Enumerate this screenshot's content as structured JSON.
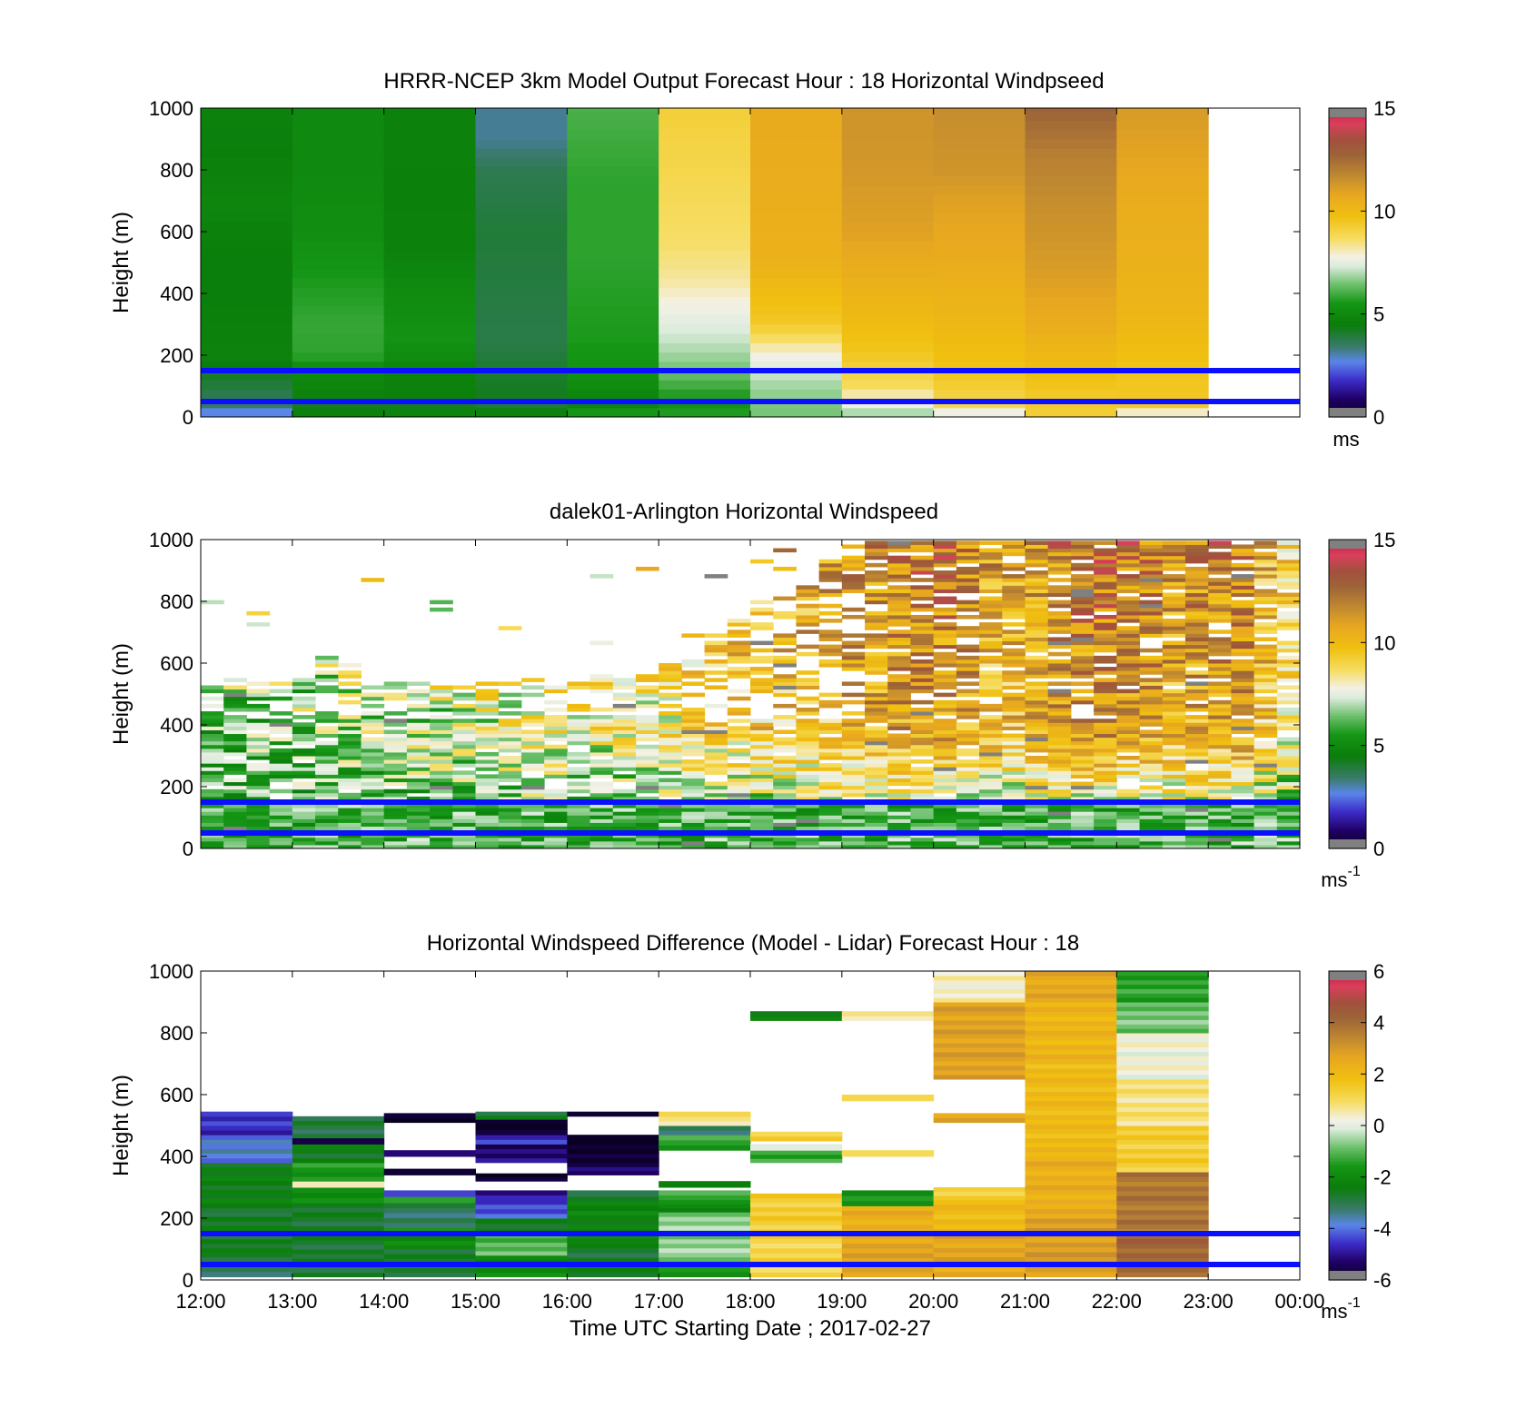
{
  "chart_data": [
    {
      "type": "heatmap",
      "title": "HRRR-NCEP 3km Model Output   Forecast Hour : 18 Horizontal Windpseed",
      "ylabel": "Height (m)",
      "ylim": [
        0,
        1000
      ],
      "yticks": [
        "0",
        "200",
        "400",
        "600",
        "800",
        "1000"
      ],
      "xlim_hours": [
        12,
        24
      ],
      "colorbar": {
        "min": 0,
        "max": 15,
        "ticks": [
          "0",
          "5",
          "10",
          "15"
        ],
        "unit": "ms",
        "unit_exp": ""
      },
      "reference_lines_m": [
        50,
        150
      ],
      "hours": [
        12,
        13,
        14,
        15,
        16,
        17,
        18,
        19,
        20,
        21,
        22
      ],
      "column_profiles_ms": [
        [
          [
            0,
            1.5
          ],
          [
            25,
            3.5
          ],
          [
            55,
            3.6
          ],
          [
            150,
            4.3
          ],
          [
            200,
            4.8
          ],
          [
            350,
            4.6
          ],
          [
            550,
            4.6
          ],
          [
            700,
            4.9
          ],
          [
            850,
            4.6
          ],
          [
            1000,
            4.7
          ]
        ],
        [
          [
            0,
            6.6
          ],
          [
            25,
            3.4
          ],
          [
            55,
            4.7
          ],
          [
            150,
            5.0
          ],
          [
            200,
            5.8
          ],
          [
            300,
            5.9
          ],
          [
            450,
            5.6
          ],
          [
            600,
            5.2
          ],
          [
            800,
            5.0
          ],
          [
            1000,
            5.0
          ]
        ],
        [
          [
            0,
            6.6
          ],
          [
            25,
            3.6
          ],
          [
            55,
            4.6
          ],
          [
            150,
            4.8
          ],
          [
            250,
            5.4
          ],
          [
            400,
            5.1
          ],
          [
            550,
            4.7
          ],
          [
            750,
            4.6
          ],
          [
            900,
            4.7
          ],
          [
            1000,
            4.7
          ]
        ],
        [
          [
            0,
            6.6
          ],
          [
            25,
            3.4
          ],
          [
            55,
            4.3
          ],
          [
            150,
            4.1
          ],
          [
            250,
            3.8
          ],
          [
            600,
            4.0
          ],
          [
            800,
            3.7
          ],
          [
            900,
            3.2
          ],
          [
            1000,
            3.2
          ]
        ],
        [
          [
            0,
            6.6
          ],
          [
            25,
            4.8
          ],
          [
            55,
            4.8
          ],
          [
            150,
            5.4
          ],
          [
            250,
            5.6
          ],
          [
            500,
            5.8
          ],
          [
            750,
            5.8
          ],
          [
            1000,
            6.1
          ]
        ],
        [
          [
            0,
            6.6
          ],
          [
            25,
            5.0
          ],
          [
            55,
            5.5
          ],
          [
            150,
            6.5
          ],
          [
            250,
            7.2
          ],
          [
            350,
            7.7
          ],
          [
            450,
            8.3
          ],
          [
            550,
            8.6
          ],
          [
            700,
            8.8
          ],
          [
            1000,
            9.2
          ]
        ],
        [
          [
            0,
            6.6
          ],
          [
            30,
            6.5
          ],
          [
            120,
            7.0
          ],
          [
            200,
            7.8
          ],
          [
            300,
            9.4
          ],
          [
            500,
            10.4
          ],
          [
            800,
            10.6
          ],
          [
            1000,
            10.7
          ]
        ],
        [
          [
            0,
            6.6
          ],
          [
            30,
            7.4
          ],
          [
            100,
            8.7
          ],
          [
            200,
            9.5
          ],
          [
            400,
            10.3
          ],
          [
            600,
            11.0
          ],
          [
            800,
            11.3
          ],
          [
            1000,
            11.4
          ]
        ],
        [
          [
            0,
            6.6
          ],
          [
            30,
            8.8
          ],
          [
            150,
            9.6
          ],
          [
            300,
            10.1
          ],
          [
            500,
            10.6
          ],
          [
            700,
            11.0
          ],
          [
            800,
            11.4
          ],
          [
            1000,
            11.6
          ]
        ],
        [
          [
            0,
            9.2
          ],
          [
            60,
            9.4
          ],
          [
            150,
            9.8
          ],
          [
            300,
            10.6
          ],
          [
            500,
            11.2
          ],
          [
            700,
            11.6
          ],
          [
            850,
            12.0
          ],
          [
            1000,
            12.8
          ]
        ],
        [
          [
            0,
            6.6
          ],
          [
            30,
            9.4
          ],
          [
            150,
            9.6
          ],
          [
            300,
            10.1
          ],
          [
            500,
            10.4
          ],
          [
            700,
            10.6
          ],
          [
            900,
            11.0
          ],
          [
            1000,
            11.2
          ]
        ]
      ]
    },
    {
      "type": "heatmap",
      "title": "dalek01-Arlington  Horizontal Windspeed",
      "ylabel": "Height (m)",
      "ylim": [
        0,
        1000
      ],
      "yticks": [
        "0",
        "200",
        "400",
        "600",
        "800",
        "1000"
      ],
      "xlim_hours": [
        12,
        24
      ],
      "colorbar": {
        "min": 0,
        "max": 15,
        "ticks": [
          "0",
          "5",
          "10",
          "15"
        ],
        "unit": "ms",
        "unit_exp": "-1"
      },
      "reference_lines_m": [
        50,
        150
      ],
      "time_step_min": 15,
      "coverage_top_m": [
        580,
        560,
        545,
        540,
        550,
        620,
        600,
        545,
        545,
        545,
        545,
        545,
        545,
        550,
        550,
        550,
        545,
        560,
        560,
        560,
        600,
        620,
        700,
        760,
        800,
        860,
        880,
        950,
        980,
        1000,
        1000,
        1000,
        1000,
        1000,
        1000,
        1000,
        1000,
        1000,
        1000,
        1000,
        1000,
        1000,
        1000,
        1000,
        1000,
        1000,
        1000,
        1000
      ],
      "column_mean_ms": [
        6.0,
        6.4,
        6.5,
        6.6,
        6.8,
        6.9,
        7.0,
        7.0,
        7.2,
        7.4,
        7.4,
        7.6,
        7.8,
        8.0,
        8.2,
        8.2,
        8.0,
        8.0,
        8.2,
        8.4,
        8.6,
        8.8,
        9.0,
        9.2,
        9.4,
        9.6,
        9.8,
        10.0,
        10.4,
        10.6,
        10.8,
        11.0,
        11.0,
        10.6,
        10.0,
        9.8,
        10.2,
        10.6,
        11.0,
        11.2,
        11.0,
        10.8,
        10.4,
        10.6,
        10.8,
        11.0,
        9.4,
        8.2
      ]
    },
    {
      "type": "heatmap",
      "title": "Horizontal Windspeed Difference (Model - Lidar) Forecast Hour : 18",
      "xlabel": "Time UTC  Starting Date ; 2017-02-27",
      "ylabel": "Height (m)",
      "ylim": [
        0,
        1000
      ],
      "yticks": [
        "0",
        "200",
        "400",
        "600",
        "800",
        "1000"
      ],
      "xticks": [
        "12:00",
        "13:00",
        "14:00",
        "15:00",
        "16:00",
        "17:00",
        "18:00",
        "19:00",
        "20:00",
        "21:00",
        "22:00",
        "23:00",
        "00:00"
      ],
      "xlim_hours": [
        12,
        24
      ],
      "colorbar": {
        "min": -6,
        "max": 6,
        "ticks": [
          "-6",
          "-4",
          "-2",
          "0",
          "2",
          "4",
          "6"
        ],
        "unit": "ms",
        "unit_exp": "-1"
      },
      "reference_lines_m": [
        50,
        150
      ],
      "hours": [
        12,
        13,
        14,
        15,
        16,
        17,
        18,
        19,
        20,
        21,
        22
      ],
      "column_segments_ms": [
        [
          [
            10,
            60,
            -3.0
          ],
          [
            60,
            220,
            -2.6
          ],
          [
            220,
            380,
            -2.4
          ],
          [
            380,
            470,
            -3.8
          ],
          [
            470,
            545,
            -4.6
          ]
        ],
        [
          [
            10,
            250,
            -2.7
          ],
          [
            250,
            300,
            -1.8
          ],
          [
            300,
            320,
            0.3
          ],
          [
            320,
            380,
            -1.6
          ],
          [
            380,
            440,
            -2.5
          ],
          [
            440,
            460,
            -5.8
          ],
          [
            460,
            530,
            -2.9
          ]
        ],
        [
          [
            10,
            100,
            -2.8
          ],
          [
            100,
            170,
            -1.9
          ],
          [
            170,
            250,
            -3.1
          ],
          [
            250,
            270,
            -1.2
          ],
          [
            270,
            290,
            -4.2
          ],
          [
            340,
            360,
            -5.6
          ],
          [
            400,
            420,
            -5.0
          ],
          [
            510,
            540,
            -5.9
          ]
        ],
        [
          [
            10,
            80,
            -2.0
          ],
          [
            80,
            150,
            -1.0
          ],
          [
            150,
            200,
            -2.6
          ],
          [
            200,
            260,
            -4.3
          ],
          [
            260,
            290,
            -5.0
          ],
          [
            320,
            345,
            -6.0
          ],
          [
            380,
            440,
            -5.2
          ],
          [
            440,
            470,
            -4.6
          ],
          [
            470,
            520,
            -6.0
          ],
          [
            520,
            545,
            -2.8
          ]
        ],
        [
          [
            10,
            120,
            -2.7
          ],
          [
            120,
            270,
            -2.2
          ],
          [
            270,
            290,
            -3.0
          ],
          [
            340,
            380,
            -5.4
          ],
          [
            380,
            470,
            -5.9
          ],
          [
            530,
            545,
            -5.8
          ]
        ],
        [
          [
            10,
            60,
            -1.5
          ],
          [
            60,
            220,
            -0.6
          ],
          [
            220,
            260,
            -2.0
          ],
          [
            260,
            290,
            -1.0
          ],
          [
            300,
            320,
            -2.0
          ],
          [
            420,
            470,
            -1.4
          ],
          [
            470,
            500,
            -3.0
          ],
          [
            500,
            545,
            0.8
          ]
        ],
        [
          [
            10,
            150,
            1.2
          ],
          [
            150,
            280,
            1.4
          ],
          [
            380,
            420,
            -1.2
          ],
          [
            420,
            440,
            -0.2
          ],
          [
            450,
            480,
            1.4
          ],
          [
            840,
            870,
            -2.2
          ]
        ],
        [
          [
            10,
            150,
            2.7
          ],
          [
            150,
            240,
            2.4
          ],
          [
            240,
            290,
            -1.6
          ],
          [
            400,
            420,
            1.2
          ],
          [
            580,
            600,
            1.3
          ],
          [
            840,
            870,
            0.6
          ]
        ],
        [
          [
            10,
            60,
            2.4
          ],
          [
            60,
            150,
            2.7
          ],
          [
            150,
            260,
            2.0
          ],
          [
            260,
            300,
            1.2
          ],
          [
            510,
            540,
            2.6
          ],
          [
            650,
            900,
            2.8
          ],
          [
            900,
            1000,
            0.4
          ]
        ],
        [
          [
            10,
            60,
            2.6
          ],
          [
            60,
            200,
            2.9
          ],
          [
            200,
            400,
            2.4
          ],
          [
            400,
            700,
            2.0
          ],
          [
            700,
            900,
            2.2
          ],
          [
            900,
            1000,
            2.6
          ]
        ],
        [
          [
            10,
            150,
            4.2
          ],
          [
            150,
            350,
            3.8
          ],
          [
            350,
            500,
            1.4
          ],
          [
            500,
            650,
            0.8
          ],
          [
            650,
            800,
            0.2
          ],
          [
            800,
            900,
            -0.8
          ],
          [
            900,
            1000,
            -1.4
          ]
        ]
      ]
    }
  ]
}
